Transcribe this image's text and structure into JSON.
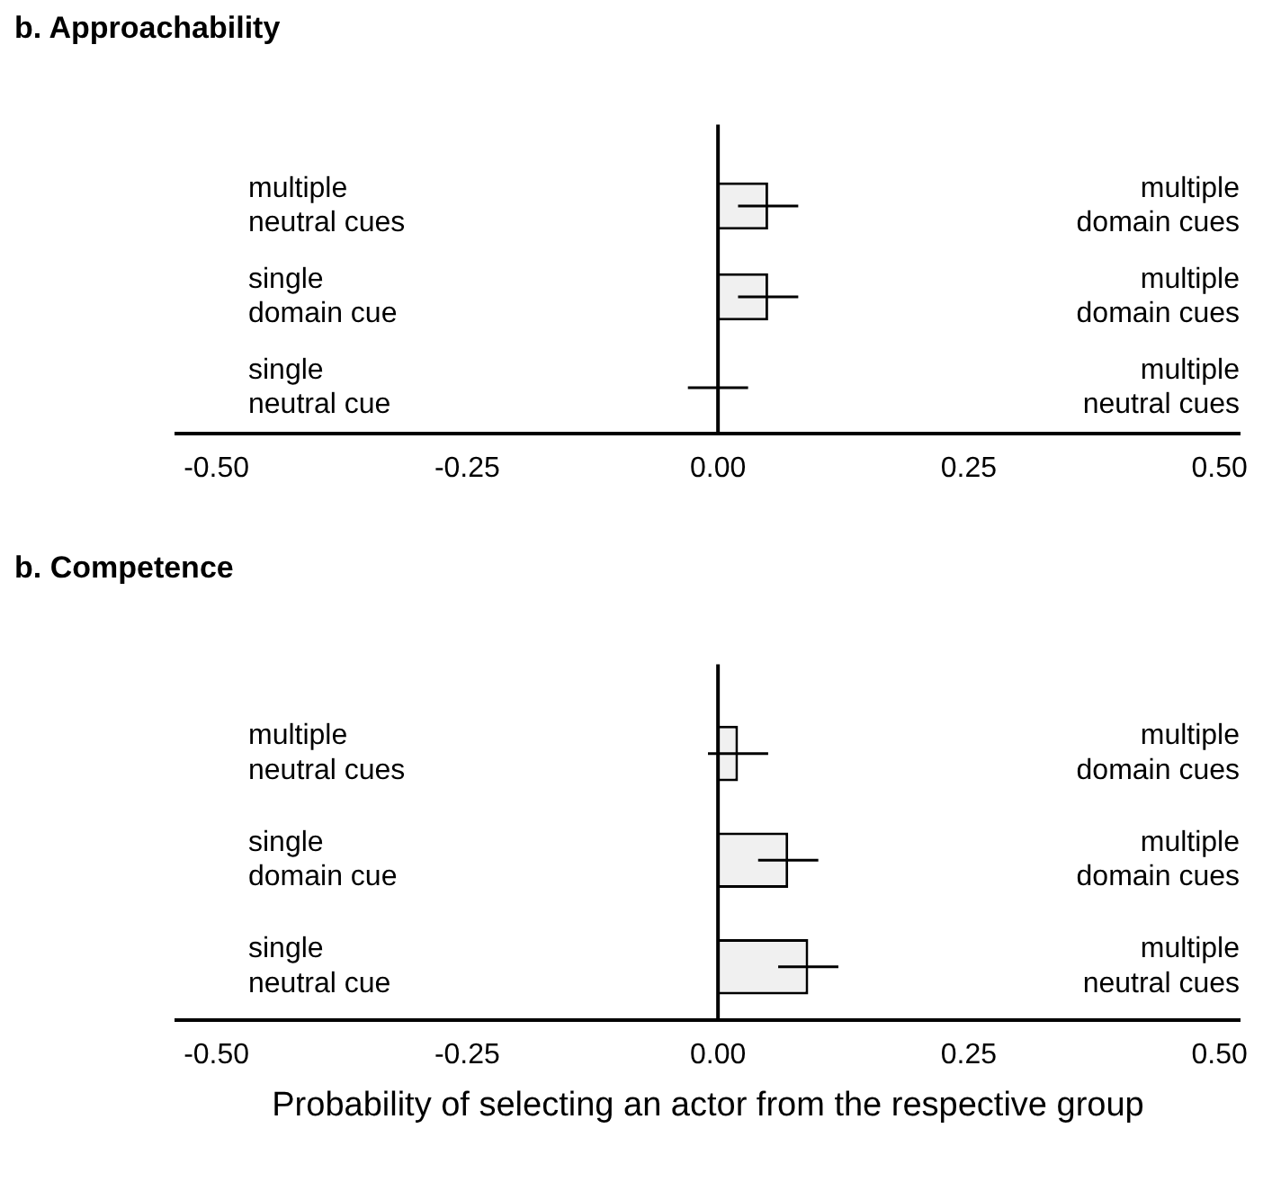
{
  "chart_data": [
    {
      "type": "bar",
      "orientation": "horizontal",
      "title": "b. Approachability",
      "categories": [
        "multiple neutral cues",
        "single domain cue",
        "single neutral cue"
      ],
      "y2_categories": [
        "multiple domain cues",
        "multiple domain cues",
        "multiple neutral cues"
      ],
      "values": [
        0.05,
        0.05,
        0
      ],
      "errors": [
        0.03,
        0.03,
        0.03
      ],
      "color": "#f0f0f0",
      "xlim": [
        -0.54,
        0.52
      ],
      "xticks": [
        {
          "value": -0.5,
          "label": "-0.50"
        },
        {
          "value": -0.25,
          "label": "-0.25"
        },
        {
          "value": 0,
          "label": "0.00"
        },
        0.25,
        {
          "value": 0.5,
          "label": "0.50"
        }
      ],
      "ref_lines": [
        {
          "axis": "x",
          "value": 0
        }
      ],
      "grid": false,
      "legend": false
    },
    {
      "type": "bar",
      "orientation": "horizontal",
      "title": "b. Competence",
      "xlabel": "Probability of selecting an actor from the respective group",
      "categories": [
        "multiple neutral cues",
        "single domain cue",
        "single neutral cue"
      ],
      "y2_categories": [
        "multiple domain cues",
        "multiple domain cues",
        "multiple neutral cues"
      ],
      "values": [
        0.02,
        0.07,
        0.09
      ],
      "errors": [
        0.03,
        0.03,
        0.03
      ],
      "color": "#f0f0f0",
      "xlim": [
        -0.54,
        0.52
      ],
      "xticks": [
        {
          "value": -0.5,
          "label": "-0.50"
        },
        {
          "value": -0.25,
          "label": "-0.25"
        },
        {
          "value": 0,
          "label": "0.00"
        },
        0.25,
        {
          "value": 0.5,
          "label": "0.50"
        }
      ],
      "ref_lines": [
        {
          "axis": "x",
          "value": 0
        }
      ],
      "grid": false,
      "legend": false
    }
  ]
}
